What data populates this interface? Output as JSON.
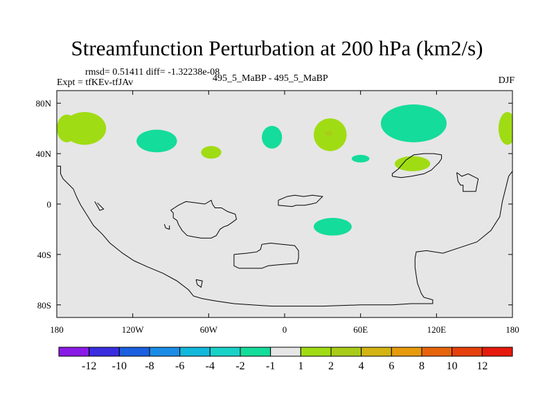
{
  "header": {
    "title": "Streamfunction Perturbation at 200 hPa (km2/s)",
    "stats": "rmsd= 0.51411  diff= -1.32238e-08",
    "experiment": "Expt = tfKEv-tfJAv",
    "case": "495_5_MaBP - 495_5_MaBP",
    "season": "DJF"
  },
  "colors": {
    "background_land_ocean": "#e6e6e6",
    "coastline": "#000000"
  },
  "chart_data": {
    "type": "heatmap",
    "projection": "cylindrical-equidistant",
    "title": "Streamfunction Perturbation at 200 hPa (km2/s)",
    "xlim": [
      -180,
      180
    ],
    "ylim": [
      -90,
      90
    ],
    "x_ticks": [
      {
        "value": -180,
        "label": "180"
      },
      {
        "value": -120,
        "label": "120W"
      },
      {
        "value": -60,
        "label": "60W"
      },
      {
        "value": 0,
        "label": "0"
      },
      {
        "value": 60,
        "label": "60E"
      },
      {
        "value": 120,
        "label": "120E"
      },
      {
        "value": 180,
        "label": "180"
      }
    ],
    "y_ticks": [
      {
        "value": 80,
        "label": "80N"
      },
      {
        "value": 40,
        "label": "40N"
      },
      {
        "value": 0,
        "label": "0"
      },
      {
        "value": -40,
        "label": "40S"
      },
      {
        "value": -80,
        "label": "80S"
      }
    ],
    "colorbar": {
      "colors": [
        "#8a1ae6",
        "#3a2de0",
        "#1a5fe0",
        "#1a8ce6",
        "#12b8dc",
        "#18d2c8",
        "#14dc9a",
        "#e6e6e6",
        "#a0dc14",
        "#a8cc18",
        "#d2b414",
        "#e69a0c",
        "#e6640c",
        "#e6400c",
        "#e61a0c"
      ],
      "labels": [
        "-12",
        "-10",
        "-8",
        "-6",
        "-4",
        "-2",
        "-1",
        "1",
        "2",
        "4",
        "6",
        "8",
        "10",
        "12"
      ]
    },
    "anomalies": [
      {
        "lon": -158,
        "lat": 60,
        "rlon": 17,
        "rlat": 13,
        "value": 1.5
      },
      {
        "lon": -172,
        "lat": 60,
        "rlon": 8,
        "rlat": 11,
        "value": 1.5
      },
      {
        "lon": -101,
        "lat": 50,
        "rlon": 16,
        "rlat": 9,
        "value": -1.5
      },
      {
        "lon": -58,
        "lat": 41,
        "rlon": 8,
        "rlat": 5,
        "value": 1.5
      },
      {
        "lon": -10,
        "lat": 53,
        "rlon": 8,
        "rlat": 9,
        "value": -1.5
      },
      {
        "lon": 36,
        "lat": 55,
        "rlon": 13,
        "rlat": 13,
        "value": 1.5
      },
      {
        "lon": 35,
        "lat": 56,
        "rlon": 3,
        "rlat": 2,
        "value": 2.5
      },
      {
        "lon": 60,
        "lat": 36,
        "rlon": 7,
        "rlat": 3,
        "value": -1.5
      },
      {
        "lon": 102,
        "lat": 64,
        "rlon": 26,
        "rlat": 15,
        "value": -1.5
      },
      {
        "lon": 101,
        "lat": 32,
        "rlon": 14,
        "rlat": 6,
        "value": 1.5
      },
      {
        "lon": 176,
        "lat": 60,
        "rlon": 7,
        "rlat": 13,
        "value": 1.5
      },
      {
        "lon": 38,
        "lat": -18,
        "rlon": 15,
        "rlat": 7,
        "value": -1.5
      }
    ],
    "coastlines": [
      [
        [
          -180,
          30
        ],
        [
          -177,
          30
        ],
        [
          -177,
          24
        ],
        [
          -175,
          20
        ],
        [
          -172,
          17
        ],
        [
          -167,
          12
        ],
        [
          -164,
          5
        ],
        [
          -161,
          -1
        ],
        [
          -156,
          -9
        ],
        [
          -151,
          -17
        ],
        [
          -144,
          -24
        ],
        [
          -138,
          -31
        ],
        [
          -128,
          -39
        ],
        [
          -119,
          -45
        ],
        [
          -108,
          -50
        ],
        [
          -96,
          -55
        ],
        [
          -85,
          -61
        ],
        [
          -76,
          -68
        ],
        [
          -72,
          -73
        ],
        [
          -65,
          -75
        ],
        [
          -54,
          -77
        ],
        [
          -40,
          -79
        ],
        [
          -26,
          -80
        ],
        [
          -10,
          -81
        ],
        [
          6,
          -81
        ],
        [
          30,
          -81
        ],
        [
          60,
          -80
        ],
        [
          85,
          -80
        ],
        [
          100,
          -79
        ],
        [
          117,
          -79
        ],
        [
          117,
          -76
        ],
        [
          110,
          -74
        ],
        [
          108,
          -71
        ],
        [
          105,
          -63
        ],
        [
          104,
          -57
        ],
        [
          103,
          -50
        ],
        [
          103,
          -43
        ],
        [
          104,
          -38
        ],
        [
          112,
          -37
        ],
        [
          125,
          -39
        ],
        [
          137,
          -35
        ],
        [
          152,
          -30
        ],
        [
          163,
          -21
        ],
        [
          170,
          -10
        ],
        [
          172,
          2
        ],
        [
          175,
          14
        ],
        [
          177,
          22
        ],
        [
          180,
          26
        ]
      ],
      [
        [
          -40,
          -40
        ],
        [
          -40,
          -49
        ],
        [
          -36,
          -51
        ],
        [
          -18,
          -51
        ],
        [
          -13,
          -49
        ],
        [
          -3,
          -48
        ],
        [
          10,
          -47
        ],
        [
          11,
          -43
        ],
        [
          11,
          -37
        ],
        [
          8,
          -33
        ],
        [
          -2,
          -32
        ],
        [
          -11,
          -31
        ],
        [
          -18,
          -32
        ],
        [
          -19,
          -36
        ],
        [
          -22,
          -38
        ],
        [
          -30,
          -39
        ],
        [
          -40,
          -40
        ]
      ],
      [
        [
          -90,
          -5
        ],
        [
          -88,
          -7
        ],
        [
          -88,
          -11
        ],
        [
          -85,
          -13
        ],
        [
          -84,
          -16
        ],
        [
          -81,
          -21
        ],
        [
          -77,
          -25
        ],
        [
          -72,
          -26
        ],
        [
          -66,
          -27
        ],
        [
          -58,
          -27
        ],
        [
          -54,
          -25
        ],
        [
          -51,
          -20
        ],
        [
          -48,
          -18
        ],
        [
          -45,
          -17
        ],
        [
          -42,
          -15
        ],
        [
          -38,
          -12
        ],
        [
          -39,
          -8
        ],
        [
          -45,
          -6
        ],
        [
          -50,
          -3
        ],
        [
          -55,
          -3
        ],
        [
          -57,
          0
        ],
        [
          -58,
          3
        ],
        [
          -63,
          0
        ],
        [
          -70,
          1
        ],
        [
          -78,
          2
        ],
        [
          -84,
          -1
        ],
        [
          -90,
          -5
        ]
      ],
      [
        [
          -5,
          3
        ],
        [
          -5,
          -1
        ],
        [
          6,
          -2
        ],
        [
          9,
          -1
        ],
        [
          16,
          -1
        ],
        [
          21,
          0
        ],
        [
          25,
          1
        ],
        [
          28,
          4
        ],
        [
          30,
          6
        ],
        [
          22,
          7
        ],
        [
          15,
          6
        ],
        [
          8,
          7
        ],
        [
          2,
          6
        ],
        [
          -5,
          3
        ]
      ],
      [
        [
          136,
          25
        ],
        [
          140,
          22
        ],
        [
          145,
          24
        ],
        [
          153,
          20
        ],
        [
          151,
          10
        ],
        [
          141,
          10
        ],
        [
          141,
          15
        ],
        [
          139,
          15
        ],
        [
          137,
          18
        ],
        [
          136,
          25
        ]
      ],
      [
        [
          85,
          22
        ],
        [
          85,
          24
        ],
        [
          90,
          28
        ],
        [
          96,
          35
        ],
        [
          102,
          39
        ],
        [
          110,
          40
        ],
        [
          118,
          40
        ],
        [
          124,
          39
        ],
        [
          124,
          36
        ],
        [
          122,
          33
        ],
        [
          119,
          30
        ],
        [
          116,
          27
        ],
        [
          110,
          24
        ],
        [
          100,
          22
        ],
        [
          92,
          21
        ],
        [
          85,
          22
        ]
      ],
      [
        [
          -150,
          2
        ],
        [
          -146,
          -5
        ],
        [
          -143,
          -4
        ],
        [
          -148,
          1
        ]
      ],
      [
        [
          -95,
          -16
        ],
        [
          -94,
          -19
        ],
        [
          -91,
          -20
        ],
        [
          -91,
          -17
        ]
      ],
      [
        [
          -70,
          -60
        ],
        [
          -69,
          -64
        ],
        [
          -66,
          -66
        ],
        [
          -65,
          -61
        ],
        [
          -70,
          -60
        ]
      ]
    ]
  }
}
